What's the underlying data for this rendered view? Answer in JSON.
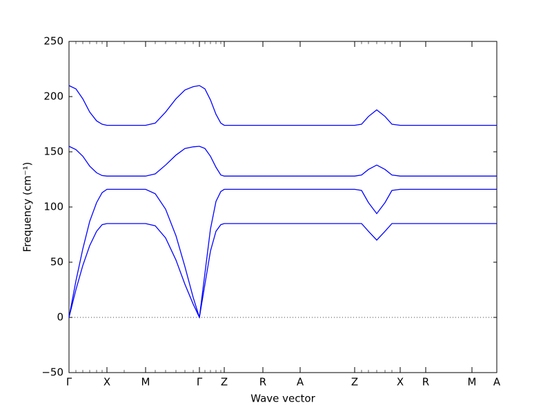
{
  "chart_data": {
    "type": "line",
    "xlabel": "Wave vector",
    "ylabel": "Frequency (cm⁻¹)",
    "x": [
      0,
      10,
      20,
      30,
      40,
      48,
      55,
      80,
      111,
      125,
      140,
      155,
      168,
      180,
      189,
      197,
      205,
      213,
      220,
      225,
      281,
      335,
      414,
      424,
      434,
      446,
      458,
      468,
      480,
      517,
      584,
      620
    ],
    "series": [
      {
        "color": "#0000ff",
        "values": [
          0,
          25,
          47,
          65,
          78,
          84,
          85,
          85,
          85,
          83,
          72,
          52,
          30,
          12,
          0,
          30,
          60,
          78,
          84,
          85,
          85,
          85,
          85,
          85,
          78,
          70,
          78,
          85,
          85,
          85,
          85,
          85
        ]
      },
      {
        "color": "#0000ff",
        "values": [
          0,
          33,
          62,
          87,
          104,
          113,
          116,
          116,
          116,
          112,
          98,
          74,
          46,
          18,
          0,
          40,
          80,
          105,
          114,
          116,
          116,
          116,
          116,
          115,
          104,
          94,
          104,
          115,
          116,
          116,
          116,
          116
        ]
      },
      {
        "color": "#0000ff",
        "values": [
          155,
          152,
          146,
          137,
          131,
          128.5,
          128,
          128,
          128,
          130,
          138,
          147,
          153,
          154.5,
          155,
          153,
          146,
          136,
          129,
          128,
          128,
          128,
          128,
          129,
          134,
          138,
          134,
          129,
          128,
          128,
          128,
          128
        ]
      },
      {
        "color": "#0000ff",
        "values": [
          210,
          207,
          198,
          186,
          178,
          175,
          174,
          174,
          174,
          176,
          186,
          198,
          206,
          209,
          210,
          207,
          197,
          184,
          176,
          174,
          174,
          174,
          174,
          175,
          182,
          188,
          182,
          175,
          174,
          174,
          174,
          174
        ]
      }
    ],
    "xlim": [
      0,
      620
    ],
    "xticks": [
      {
        "value": 0,
        "label": "Γ"
      },
      {
        "value": 55,
        "label": "X"
      },
      {
        "value": 111,
        "label": "M"
      },
      {
        "value": 189,
        "label": "Γ"
      },
      {
        "value": 225,
        "label": "Z"
      },
      {
        "value": 281,
        "label": "R"
      },
      {
        "value": 335,
        "label": "A"
      },
      {
        "value": 414,
        "label": "Z"
      },
      {
        "value": 480,
        "label": "X"
      },
      {
        "value": 517,
        "label": "R"
      },
      {
        "value": 584,
        "label": "M"
      },
      {
        "value": 620,
        "label": "A"
      }
    ],
    "ylim": [
      -50,
      250
    ],
    "yticks": [
      {
        "value": -50,
        "label": "−50"
      },
      0,
      50,
      100,
      150,
      200,
      250
    ],
    "zero_line": true
  }
}
